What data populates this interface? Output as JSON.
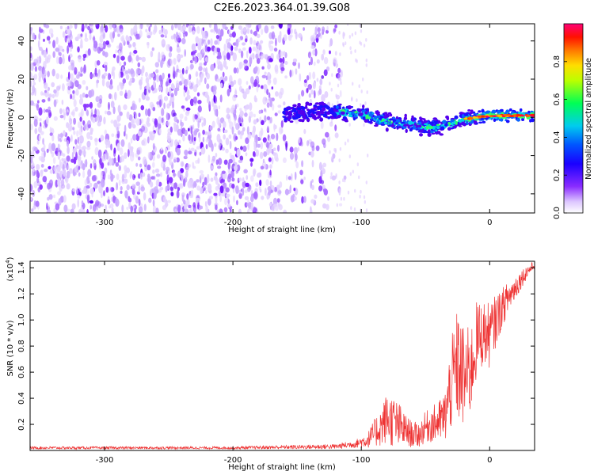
{
  "figure": {
    "title": "C2E6.2023.364.01.39.G08"
  },
  "chart_data": [
    {
      "type": "heatmap",
      "xlabel": "Height of straight line (km)",
      "ylabel": "Frequency (Hz)",
      "xlim": [
        -358,
        35
      ],
      "ylim": [
        -50,
        49
      ],
      "x_ticks": [
        -300,
        -200,
        -100,
        0
      ],
      "x_tick_labels": [
        "-300",
        "-200",
        "-100",
        "0"
      ],
      "y_ticks": [
        -40,
        -20,
        0,
        20,
        40
      ],
      "y_tick_labels": [
        "-40",
        "-20",
        "0",
        "20",
        "40"
      ],
      "colorbar": {
        "label": "Normalized spectral amplitude",
        "range": [
          0,
          1
        ],
        "ticks": [
          0.0,
          0.2,
          0.4,
          0.6,
          0.8
        ],
        "tick_labels": [
          "0.0",
          "0.2",
          "0.4",
          "0.6",
          "0.8"
        ]
      },
      "ridge": {
        "x": [
          -160,
          -140,
          -120,
          -100,
          -90,
          -80,
          -70,
          -60,
          -50,
          -40,
          -30,
          -20,
          -10,
          0,
          10,
          20,
          35
        ],
        "freq": [
          2,
          3,
          3,
          2,
          0,
          -2,
          -3,
          -4,
          -5,
          -5,
          -3,
          -1,
          0,
          1,
          1,
          1,
          1
        ]
      },
      "noise_region": {
        "x_range": [
          -358,
          -120
        ],
        "freq_range": [
          -50,
          49
        ]
      }
    },
    {
      "type": "line",
      "xlabel": "Height of straight line (km)",
      "ylabel": "SNR (10 * v/v)",
      "y_scale_label": "(x10",
      "y_scale_exponent": "4",
      "y_scale_close": ")",
      "xlim": [
        -358,
        35
      ],
      "ylim": [
        0,
        1.45
      ],
      "x_ticks": [
        -300,
        -200,
        -100,
        0
      ],
      "x_tick_labels": [
        "-300",
        "-200",
        "-100",
        "0"
      ],
      "y_ticks": [
        0.2,
        0.4,
        0.6,
        0.8,
        1.0,
        1.2,
        1.4
      ],
      "y_tick_labels": [
        "0.2",
        "0.4",
        "0.6",
        "0.8",
        "1.0",
        "1.2",
        "1.4"
      ],
      "color": "#ee3333",
      "envelope": {
        "x": [
          -358,
          -200,
          -120,
          -105,
          -95,
          -85,
          -80,
          -75,
          -70,
          -65,
          -60,
          -55,
          -50,
          -45,
          -40,
          -35,
          -30,
          -25,
          -20,
          -15,
          -10,
          -5,
          0,
          5,
          10,
          15,
          20,
          25,
          30,
          35
        ],
        "mid": [
          0.02,
          0.02,
          0.03,
          0.05,
          0.08,
          0.18,
          0.25,
          0.22,
          0.18,
          0.15,
          0.12,
          0.12,
          0.18,
          0.2,
          0.22,
          0.25,
          0.5,
          0.65,
          0.55,
          0.6,
          0.85,
          0.9,
          0.88,
          1.0,
          1.1,
          1.18,
          1.25,
          1.32,
          1.38,
          1.42
        ],
        "amp": [
          0.01,
          0.01,
          0.02,
          0.03,
          0.06,
          0.15,
          0.2,
          0.2,
          0.18,
          0.12,
          0.1,
          0.1,
          0.12,
          0.14,
          0.16,
          0.2,
          0.35,
          0.45,
          0.4,
          0.35,
          0.3,
          0.25,
          0.25,
          0.2,
          0.15,
          0.12,
          0.1,
          0.07,
          0.05,
          0.03
        ]
      }
    }
  ]
}
